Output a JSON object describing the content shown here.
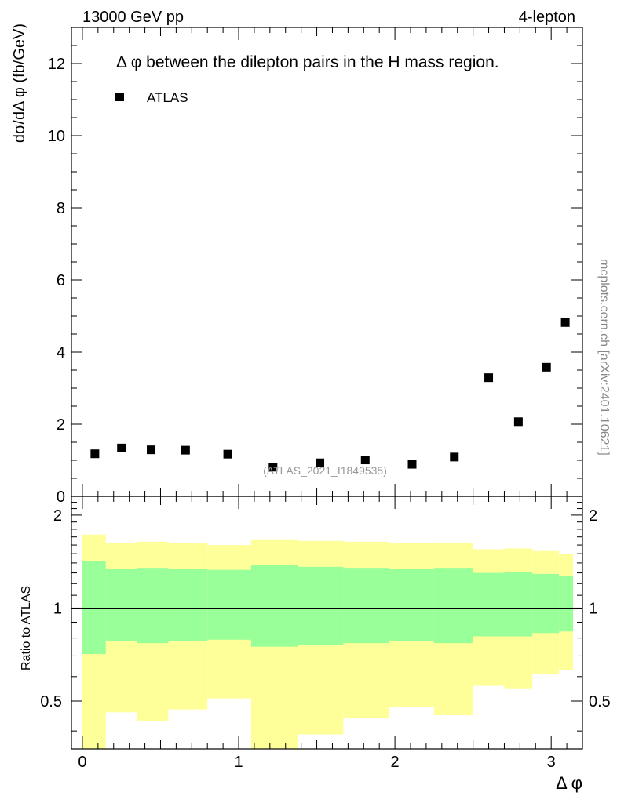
{
  "header": {
    "left": "13000 GeV pp",
    "right": "4-lepton"
  },
  "side_label": "mcplots.cern.ch [arXiv:2401.10621]",
  "watermark": "(ATLAS_2021_I1849535)",
  "colors": {
    "band_outer": "#ffff99",
    "band_inner": "#99ff99",
    "marker": "#000000",
    "axis": "#000000",
    "watermark": "#999999"
  },
  "chart_data": [
    {
      "type": "scatter",
      "panel": "main",
      "title": "Δ φ between the dilepton pairs in the H mass region.",
      "ylabel": "dσ/dΔ φ (fb/GeV)",
      "xlim": [
        -0.07,
        3.2
      ],
      "ylim": [
        0,
        13
      ],
      "yticks": [
        0,
        2,
        4,
        6,
        8,
        10,
        12
      ],
      "legend": {
        "placement": "top-left",
        "entries": [
          "ATLAS"
        ]
      },
      "series": [
        {
          "name": "ATLAS",
          "x": [
            0.08,
            0.25,
            0.44,
            0.66,
            0.93,
            1.22,
            1.52,
            1.81,
            2.11,
            2.38,
            2.6,
            2.79,
            2.97,
            3.09
          ],
          "y": [
            1.18,
            1.34,
            1.29,
            1.28,
            1.17,
            0.81,
            0.93,
            1.01,
            0.89,
            1.09,
            3.29,
            2.07,
            3.58,
            4.82
          ]
        }
      ]
    },
    {
      "type": "area",
      "panel": "ratio",
      "ylabel": "Ratio to ATLAS",
      "xlabel": "Δ φ",
      "xlim": [
        -0.07,
        3.2
      ],
      "ylim": [
        0.35,
        2.3
      ],
      "yticks": [
        0.5,
        1,
        2
      ],
      "xticks": [
        0,
        1,
        2,
        3
      ],
      "reference_line": 1,
      "bins": [
        0,
        0.15,
        0.35,
        0.55,
        0.8,
        1.08,
        1.38,
        1.67,
        1.96,
        2.25,
        2.5,
        2.7,
        2.88,
        3.05,
        3.14
      ],
      "outer_band": {
        "lo": [
          0.3,
          0.46,
          0.43,
          0.47,
          0.51,
          0.3,
          0.39,
          0.44,
          0.48,
          0.45,
          0.56,
          0.55,
          0.61,
          0.63
        ],
        "hi": [
          1.73,
          1.62,
          1.64,
          1.62,
          1.6,
          1.67,
          1.65,
          1.64,
          1.62,
          1.63,
          1.55,
          1.56,
          1.53,
          1.5
        ]
      },
      "inner_band": {
        "lo": [
          0.71,
          0.78,
          0.77,
          0.78,
          0.79,
          0.75,
          0.76,
          0.77,
          0.78,
          0.77,
          0.81,
          0.81,
          0.83,
          0.84
        ],
        "hi": [
          1.42,
          1.34,
          1.35,
          1.34,
          1.33,
          1.38,
          1.36,
          1.35,
          1.34,
          1.35,
          1.3,
          1.31,
          1.29,
          1.27
        ]
      }
    }
  ]
}
